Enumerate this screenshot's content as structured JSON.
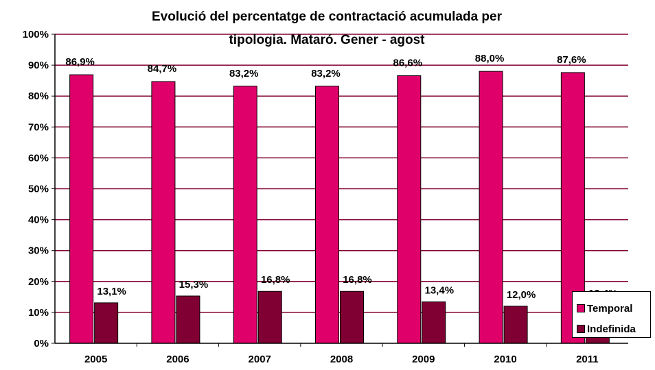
{
  "chart_data": {
    "type": "bar",
    "title_lines": [
      "Evolució del percentatge de contractació acumulada per",
      "tipologia. Mataró. Gener - agost"
    ],
    "categories": [
      "2005",
      "2006",
      "2007",
      "2008",
      "2009",
      "2010",
      "2011"
    ],
    "series": [
      {
        "name": "Temporal",
        "color": "#e0006a",
        "values": [
          86.9,
          84.7,
          83.2,
          83.2,
          86.6,
          88.0,
          87.6
        ],
        "labels": [
          "86,9%",
          "84,7%",
          "83,2%",
          "83,2%",
          "86,6%",
          "88,0%",
          "87,6%"
        ]
      },
      {
        "name": "Indefinida",
        "color": "#800033",
        "values": [
          13.1,
          15.3,
          16.8,
          16.8,
          13.4,
          12.0,
          12.4
        ],
        "labels": [
          "13,1%",
          "15,3%",
          "16,8%",
          "16,8%",
          "13,4%",
          "12,0%",
          "12,4%"
        ]
      }
    ],
    "y_ticks": [
      "0%",
      "10%",
      "20%",
      "30%",
      "40%",
      "50%",
      "60%",
      "70%",
      "80%",
      "90%",
      "100%"
    ],
    "ylim": [
      0,
      100
    ],
    "grid": true,
    "legend_position": "bottom-right"
  }
}
